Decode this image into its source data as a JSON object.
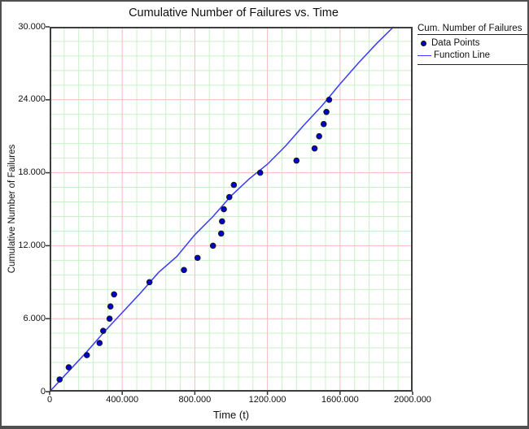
{
  "chart_data": {
    "type": "scatter",
    "title": "Cumulative Number of Failures vs. Time",
    "xlabel": "Time (t)",
    "ylabel": "Cumulative Number of Failures",
    "xlim": [
      0,
      2000
    ],
    "ylim": [
      0,
      30
    ],
    "x_axis": {
      "minor_step": 80,
      "major_step": 400,
      "major_ticks": [
        {
          "v": 0,
          "label": "0"
        },
        {
          "v": 400,
          "label": "400.000"
        },
        {
          "v": 800,
          "label": "800.000"
        },
        {
          "v": 1200,
          "label": "1200.000"
        },
        {
          "v": 1600,
          "label": "1600.000"
        },
        {
          "v": 2000,
          "label": "2000.000"
        }
      ]
    },
    "y_axis": {
      "minor_step": 1.2,
      "major_step": 6,
      "major_ticks": [
        {
          "v": 0,
          "label": "0"
        },
        {
          "v": 6,
          "label": "6.000"
        },
        {
          "v": 12,
          "label": "12.000"
        },
        {
          "v": 18,
          "label": "18.000"
        },
        {
          "v": 24,
          "label": "24.000"
        },
        {
          "v": 30,
          "label": "30.000"
        }
      ]
    },
    "grid": {
      "minor_color": "#c9f1c9",
      "major_color": "#f6bcbc",
      "on": true
    },
    "plot_border_color": "#3d3d3d",
    "tick_color": "#333333",
    "legend": {
      "title": "Cum. Number of Failures",
      "position": "top-right"
    },
    "series": [
      {
        "name": "Data Points",
        "type": "scatter",
        "color": "#0000cc",
        "outline": "#1a1a1a",
        "points": [
          [
            55,
            1
          ],
          [
            105,
            2
          ],
          [
            205,
            3
          ],
          [
            275,
            4
          ],
          [
            295,
            5
          ],
          [
            330,
            6
          ],
          [
            335,
            7
          ],
          [
            355,
            8
          ],
          [
            550,
            9
          ],
          [
            740,
            10
          ],
          [
            815,
            11
          ],
          [
            900,
            12
          ],
          [
            945,
            13
          ],
          [
            950,
            14
          ],
          [
            960,
            15
          ],
          [
            990,
            16
          ],
          [
            1015,
            17
          ],
          [
            1160,
            18
          ],
          [
            1360,
            19
          ],
          [
            1460,
            20
          ],
          [
            1485,
            21
          ],
          [
            1510,
            22
          ],
          [
            1525,
            23
          ],
          [
            1540,
            24
          ]
        ]
      },
      {
        "name": "Function Line",
        "type": "line",
        "color": "#3a3aff",
        "points": [
          [
            0,
            0
          ],
          [
            100,
            1.6
          ],
          [
            200,
            3.2
          ],
          [
            300,
            4.9
          ],
          [
            400,
            6.5
          ],
          [
            500,
            8.1
          ],
          [
            600,
            9.8
          ],
          [
            700,
            11.1
          ],
          [
            800,
            12.9
          ],
          [
            900,
            14.4
          ],
          [
            1000,
            16.1
          ],
          [
            1100,
            17.5
          ],
          [
            1200,
            18.7
          ],
          [
            1300,
            20.2
          ],
          [
            1400,
            21.9
          ],
          [
            1500,
            23.5
          ],
          [
            1600,
            25.3
          ],
          [
            1700,
            27.0
          ],
          [
            1800,
            28.6
          ],
          [
            1895,
            30
          ]
        ]
      }
    ]
  }
}
